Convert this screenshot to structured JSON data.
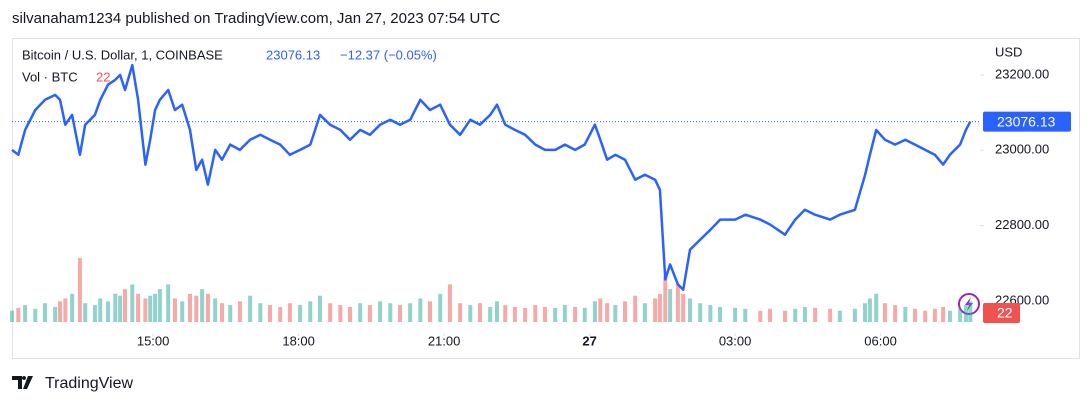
{
  "header": "silvanaham1234 published on TradingView.com, Jan 27, 2023 07:54 UTC",
  "footer": "TradingView",
  "chart_data": {
    "type": "line",
    "currency": "USD",
    "change": "−12.37 (−0.05%)",
    "x": [
      12.09,
      12.22,
      12.36,
      12.57,
      12.77,
      12.98,
      13.08,
      13.19,
      13.33,
      13.49,
      13.6,
      13.8,
      13.91,
      14.07,
      14.22,
      14.32,
      14.42,
      14.57,
      14.69,
      14.84,
      14.94,
      15.04,
      15.14,
      15.31,
      15.45,
      15.6,
      15.76,
      15.89,
      16.01,
      16.13,
      16.28,
      16.42,
      16.59,
      16.79,
      17.0,
      17.21,
      17.41,
      17.62,
      17.82,
      18.03,
      18.24,
      18.44,
      18.65,
      18.86,
      19.06,
      19.27,
      19.47,
      19.68,
      19.89,
      20.09,
      20.3,
      20.51,
      20.71,
      20.92,
      21.12,
      21.33,
      21.54,
      21.74,
      21.95,
      22.09,
      22.26,
      22.46,
      22.67,
      22.88,
      23.08,
      23.29,
      23.49,
      23.7,
      23.9,
      24.11,
      24.22,
      24.36,
      24.53,
      24.73,
      24.94,
      25.14,
      25.35,
      25.45,
      25.56,
      25.66,
      25.82,
      25.93,
      26.07,
      26.28,
      26.49,
      26.69,
      27.0,
      27.21,
      27.52,
      27.72,
      28.03,
      28.24,
      28.44,
      28.65,
      28.96,
      29.16,
      29.47,
      29.68,
      29.78,
      29.91,
      30.09,
      30.3,
      30.51,
      30.71,
      30.92,
      31.12,
      31.29,
      31.43,
      31.64,
      31.76,
      31.85
    ],
    "series": [
      {
        "name": "Bitcoin / U.S. Dollar, 1, COINBASE",
        "color": "#2962ff",
        "values": [
          23001,
          22988,
          23054,
          23107,
          23134,
          23147,
          23134,
          23068,
          23094,
          22988,
          23068,
          23094,
          23134,
          23174,
          23187,
          23200,
          23160,
          23226,
          23134,
          22962,
          23028,
          23107,
          23134,
          23160,
          23107,
          23121,
          23054,
          22948,
          22975,
          22909,
          23001,
          22975,
          23015,
          23001,
          23028,
          23041,
          23028,
          23015,
          22988,
          23001,
          23015,
          23094,
          23068,
          23054,
          23028,
          23054,
          23041,
          23068,
          23081,
          23068,
          23081,
          23134,
          23107,
          23121,
          23068,
          23041,
          23081,
          23068,
          23094,
          23121,
          23068,
          23054,
          23041,
          23015,
          23001,
          23001,
          23015,
          23001,
          23015,
          23068,
          23028,
          22975,
          22988,
          22975,
          22922,
          22935,
          22922,
          22895,
          22657,
          22697,
          22644,
          22630,
          22736,
          22763,
          22789,
          22816,
          22816,
          22829,
          22816,
          22803,
          22776,
          22816,
          22842,
          22829,
          22816,
          22829,
          22842,
          22935,
          22988,
          23054,
          23028,
          23015,
          23028,
          23015,
          23001,
          22988,
          22962,
          22988,
          23015,
          23054,
          23076.13
        ]
      },
      {
        "name": "Vol · BTC",
        "color": "#ef5350",
        "axis": "y2",
        "values": [
          12,
          15,
          18,
          14,
          20,
          16,
          22,
          25,
          30,
          68,
          20,
          18,
          25,
          22,
          30,
          28,
          35,
          40,
          30,
          25,
          28,
          30,
          35,
          40,
          25,
          22,
          30,
          28,
          35,
          30,
          25,
          20,
          18,
          22,
          28,
          20,
          18,
          16,
          20,
          18,
          22,
          28,
          20,
          18,
          16,
          20,
          18,
          22,
          20,
          18,
          20,
          25,
          22,
          30,
          40,
          20,
          18,
          20,
          16,
          22,
          18,
          16,
          15,
          18,
          16,
          15,
          18,
          16,
          15,
          22,
          25,
          20,
          18,
          22,
          28,
          20,
          25,
          30,
          48,
          35,
          40,
          30,
          25,
          20,
          18,
          16,
          15,
          14,
          12,
          14,
          12,
          14,
          16,
          15,
          14,
          12,
          14,
          20,
          25,
          30,
          20,
          18,
          16,
          14,
          12,
          14,
          16,
          12,
          14,
          18,
          22
        ]
      }
    ],
    "xlim": [
      12.09,
      32.05
    ],
    "xticks": [
      {
        "value": 15,
        "label": "15:00"
      },
      {
        "value": 18,
        "label": "18:00"
      },
      {
        "value": 21,
        "label": "21:00"
      },
      {
        "value": 24,
        "label": "27"
      },
      {
        "value": 27,
        "label": "03:00"
      },
      {
        "value": 30,
        "label": "06:00"
      }
    ],
    "ylim": [
      22515,
      23298
    ],
    "yticks": [
      {
        "value": 22600,
        "label": "22600.00"
      },
      {
        "value": 22800,
        "label": "22800.00"
      },
      {
        "value": 23000,
        "label": "23000.00"
      },
      {
        "value": 23200,
        "label": "23200.00"
      }
    ],
    "y2lim": [
      0,
      300
    ],
    "up_color": "#26a69a",
    "grid": false
  }
}
